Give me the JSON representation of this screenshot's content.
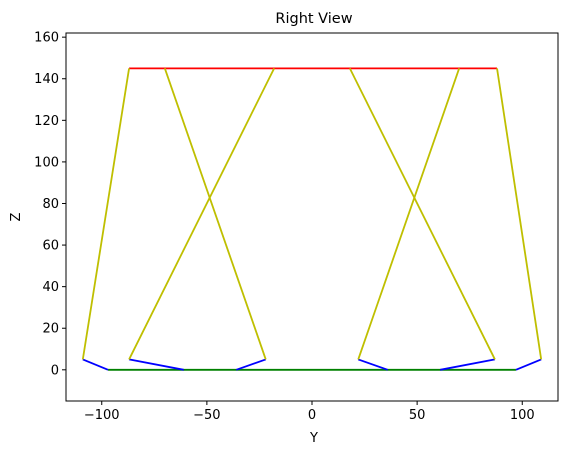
{
  "chart_data": {
    "type": "line",
    "title": "Right View",
    "xlabel": "Y",
    "ylabel": "Z",
    "xlim": [
      -117,
      117
    ],
    "ylim": [
      -15,
      162
    ],
    "xticks": [
      -100,
      -50,
      0,
      50,
      100
    ],
    "yticks": [
      0,
      20,
      40,
      60,
      80,
      100,
      120,
      140,
      160
    ],
    "grid": false,
    "series": [
      {
        "color": "#ff0000",
        "x": [
          -87,
          88
        ],
        "y": [
          145,
          145
        ]
      },
      {
        "color": "#008000",
        "x": [
          -97,
          97
        ],
        "y": [
          0,
          0
        ]
      },
      {
        "color": "#0000ff",
        "x": [
          -109,
          -97
        ],
        "y": [
          5,
          0
        ]
      },
      {
        "color": "#0000ff",
        "x": [
          -87,
          -61
        ],
        "y": [
          5,
          0
        ]
      },
      {
        "color": "#0000ff",
        "x": [
          -36,
          -22
        ],
        "y": [
          0,
          5
        ]
      },
      {
        "color": "#0000ff",
        "x": [
          22,
          36
        ],
        "y": [
          5,
          0
        ]
      },
      {
        "color": "#0000ff",
        "x": [
          61,
          87
        ],
        "y": [
          0,
          5
        ]
      },
      {
        "color": "#0000ff",
        "x": [
          97,
          109
        ],
        "y": [
          0,
          5
        ]
      },
      {
        "color": "#bfbf00",
        "x": [
          -109,
          -87
        ],
        "y": [
          5,
          145
        ]
      },
      {
        "color": "#bfbf00",
        "x": [
          -70,
          -22
        ],
        "y": [
          145,
          5
        ]
      },
      {
        "color": "#bfbf00",
        "x": [
          -87,
          -18
        ],
        "y": [
          5,
          145
        ]
      },
      {
        "color": "#bfbf00",
        "x": [
          18,
          87
        ],
        "y": [
          145,
          5
        ]
      },
      {
        "color": "#bfbf00",
        "x": [
          22,
          70
        ],
        "y": [
          5,
          145
        ]
      },
      {
        "color": "#bfbf00",
        "x": [
          88,
          109
        ],
        "y": [
          145,
          5
        ]
      }
    ]
  }
}
